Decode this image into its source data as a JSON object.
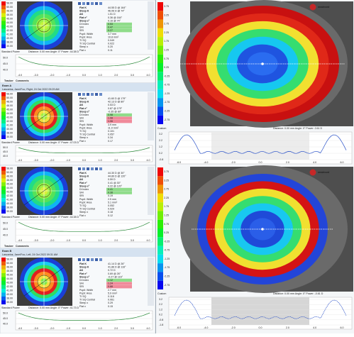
{
  "brand": "medmont",
  "map_scale": [
    "58.00",
    "50.00",
    "48.00",
    "46.00",
    "45.00",
    "44.00",
    "43.00",
    "42.00",
    "41.00",
    "40.00",
    "38.00",
    "30.00"
  ],
  "diff_scale": [
    "3.75",
    "3.25",
    "2.75",
    "2.25",
    "1.75",
    "1.25",
    "0.75",
    "0.25",
    "-0.25",
    "-0.75",
    "-1.25",
    "-1.75",
    "-2.25",
    "-2.75"
  ],
  "power_label": "Standard Power",
  "tabs": [
    "Tracker",
    "Comments"
  ],
  "graph_xticks": [
    "-4.0",
    "-3.0",
    "-2.0",
    "-1.0",
    "0.0",
    "1.0",
    "2.0",
    "3.0",
    "4.0"
  ],
  "graph_yticks": [
    "50.0",
    "45.0",
    "40.0"
  ],
  "left_panels": [
    {
      "distance": "Distance: 0.00 mm   Angle: 0°   Power: 44.38 D",
      "ring_colors": [
        "#1b3fd6",
        "#0fb4f4",
        "#22dc86",
        "#55e25a",
        "#9ff046",
        "#c4f43c"
      ],
      "rows": [
        {
          "label": "Flat K",
          "value": "44.55 D @ 164°",
          "flag": "none"
        },
        {
          "label": "Steep K",
          "value": "46.06 D @ 74°",
          "flag": "none"
        },
        {
          "label": "ΔK",
          "value": "1.51 D",
          "flag": "none"
        },
        {
          "label": "Flat e²",
          "value": "0.36 @ 164°",
          "flag": "none"
        },
        {
          "label": "Steep e²",
          "value": "0.16 @ 74°",
          "flag": "none"
        },
        {
          "label": "Di Index",
          "value": "0.53",
          "flag": "ok"
        },
        {
          "label": "SAI",
          "value": "0.47",
          "flag": "ok"
        },
        {
          "label": "SRI",
          "value": "0.27",
          "flag": "ok"
        },
        {
          "label": "Pupil: Width",
          "value": "3.7 mm",
          "flag": "none"
        },
        {
          "label": "Pupil: Area",
          "value": "10.8 mm²",
          "flag": "none"
        },
        {
          "label": "TI SQ",
          "value": "0.049",
          "flag": "none"
        },
        {
          "label": "TI SQ Central",
          "value": "0.022",
          "flag": "none"
        },
        {
          "label": "Steep x",
          "value": "0.20",
          "flag": "none"
        },
        {
          "label": "Flat x",
          "value": "0.11",
          "flag": "none"
        }
      ]
    },
    {
      "exam": "Exam A",
      "patient": "Lascarius, Jane/Foo, Right, 24 Oct 2022 09:29 AM",
      "distance": "Distance: 0.00 mm   Angle: 0°   Power: 47.03 D",
      "ring_colors": [
        "#1b3fd6",
        "#18cdf0",
        "#2ede62",
        "#e02020",
        "#ff8a20",
        "#f0e040",
        "#a0f040"
      ],
      "rows": [
        {
          "label": "Flat K",
          "value": "41.60 D @ 179°",
          "flag": "none"
        },
        {
          "label": "Steep K",
          "value": "42.13 D @ 89°",
          "flag": "none"
        },
        {
          "label": "ΔK",
          "value": "0.53 D",
          "flag": "none"
        },
        {
          "label": "Flat e²",
          "value": "0.87 @ 179°",
          "flag": "none"
        },
        {
          "label": "Steep e²",
          "value": "-0.35 @ 89°",
          "flag": "none"
        },
        {
          "label": "Di Index",
          "value": "0.98",
          "flag": "ok"
        },
        {
          "label": "SAI",
          "value": "1.08",
          "flag": "warn"
        },
        {
          "label": "SRI",
          "value": "1.06",
          "flag": "warn"
        },
        {
          "label": "Pupil: Width",
          "value": "3.9 mm",
          "flag": "none"
        },
        {
          "label": "Pupil: Area",
          "value": "11.9 mm²",
          "flag": "none"
        },
        {
          "label": "TI SQ",
          "value": "0.101",
          "flag": "none"
        },
        {
          "label": "TI SQ Central",
          "value": "0.057",
          "flag": "none"
        },
        {
          "label": "Steep x",
          "value": "0.34",
          "flag": "none"
        },
        {
          "label": "Flat x",
          "value": "0.17",
          "flag": "none"
        }
      ]
    },
    {
      "distance": "Distance: 0.00 mm   Angle: 0°   Power: 44.38 D",
      "ring_colors": [
        "#1b3fd6",
        "#0fb4f4",
        "#22dc86",
        "#55e25a",
        "#9ff046",
        "#d8f03a"
      ],
      "rows": [
        {
          "label": "Flat K",
          "value": "44.30 D @ 30°",
          "flag": "none"
        },
        {
          "label": "Steep K",
          "value": "44.89 D @ 120°",
          "flag": "none"
        },
        {
          "label": "ΔK",
          "value": "0.59 D",
          "flag": "none"
        },
        {
          "label": "Flat e²",
          "value": "0.41 @ 30°",
          "flag": "none"
        },
        {
          "label": "Steep e²",
          "value": "0.22 @ 120°",
          "flag": "none"
        },
        {
          "label": "Di Index",
          "value": "0.41",
          "flag": "ok"
        },
        {
          "label": "SAI",
          "value": "0.38",
          "flag": "ok"
        },
        {
          "label": "SRI",
          "value": "0.19",
          "flag": "none"
        },
        {
          "label": "Pupil: Width",
          "value": "2.5 mm",
          "flag": "none"
        },
        {
          "label": "Pupil: Area",
          "value": "5.1 mm²",
          "flag": "none"
        },
        {
          "label": "TI SQ",
          "value": "0.052",
          "flag": "none"
        },
        {
          "label": "TI SQ Central",
          "value": "0.029",
          "flag": "none"
        },
        {
          "label": "Steep x",
          "value": "0.18",
          "flag": "none"
        },
        {
          "label": "Flat x",
          "value": "0.12",
          "flag": "none"
        }
      ]
    },
    {
      "exam": "Exam B",
      "patient": "Lascarius, Jane/Foo, Left, 24 Oct 2022 09:31 AM",
      "distance": "Distance: 0.00 mm   Angle: 0°   Power: 41.73 D",
      "ring_colors": [
        "#1b3fd6",
        "#18cdf0",
        "#2ede62",
        "#e02020",
        "#ff8a20",
        "#f0e040",
        "#7ee84a"
      ],
      "rows": [
        {
          "label": "Flat K",
          "value": "41.14 D @ 26°",
          "flag": "none"
        },
        {
          "label": "Steep K",
          "value": "41.86 D @ 116°",
          "flag": "none"
        },
        {
          "label": "ΔK",
          "value": "0.72 D",
          "flag": "none"
        },
        {
          "label": "Flat e²",
          "value": "0.69 @ 26°",
          "flag": "none"
        },
        {
          "label": "Steep e²",
          "value": "-0.27 @ 116°",
          "flag": "none"
        },
        {
          "label": "Di Index",
          "value": "1.12",
          "flag": "ok"
        },
        {
          "label": "SAI",
          "value": "1.24",
          "flag": "warn"
        },
        {
          "label": "SRI",
          "value": "0.88",
          "flag": "warn"
        },
        {
          "label": "Pupil: Width",
          "value": "2.7 mm",
          "flag": "none"
        },
        {
          "label": "Pupil: Area",
          "value": "5.9 mm²",
          "flag": "none"
        },
        {
          "label": "TI SQ",
          "value": "0.118",
          "flag": "none"
        },
        {
          "label": "TI SQ Central",
          "value": "0.061",
          "flag": "none"
        },
        {
          "label": "Steep x",
          "value": "0.29",
          "flag": "none"
        },
        {
          "label": "Flat x",
          "value": "0.15",
          "flag": "none"
        }
      ]
    }
  ],
  "right_panels": [
    {
      "scale_name": "Custom",
      "distance": "Distance: 0.00 mm   Angle: 0°   Power: 2.61 D",
      "ring_colors": [
        "#c81010",
        "#e02818",
        "#f2e030",
        "#35dd70",
        "#16c8f0",
        "#1f54e0",
        "#2a6cf0"
      ],
      "graph_yticks": [
        "3.2",
        "2.2",
        "1.2",
        "0.2",
        "-0.8"
      ]
    },
    {
      "scale_name": "Custom",
      "distance": "Distance: 0.00 mm   Angle: 0°   Power: -0.61 D",
      "ring_colors": [
        "#2345d8",
        "#d41414",
        "#f0e030",
        "#35dd70",
        "#18c8f0",
        "#1f4ad8",
        "#2a5ee8"
      ],
      "graph_yticks": [
        "3.2",
        "2.2",
        "1.2",
        "0.2",
        "-0.8",
        "-1.8"
      ]
    }
  ],
  "right_graph_xticks": [
    "-6.0",
    "-4.0",
    "-2.0",
    "0.0",
    "2.0",
    "4.0",
    "6.0"
  ]
}
